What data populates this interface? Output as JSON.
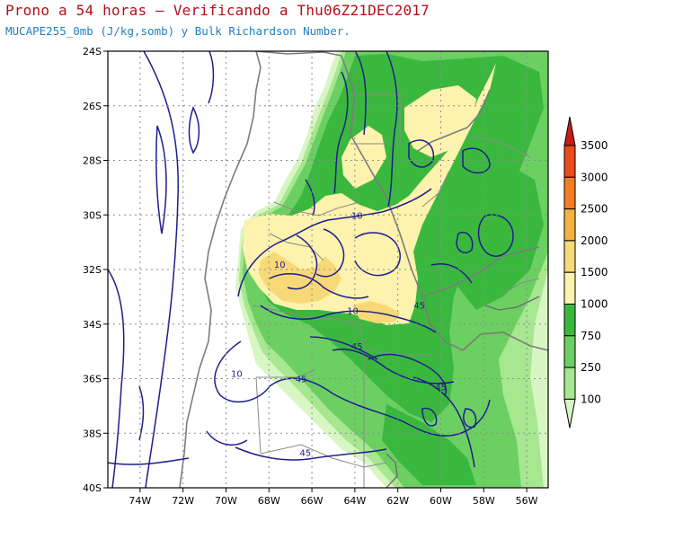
{
  "header": {
    "title": "Prono a 54 horas — Verificando a Thu06Z21DEC2017",
    "subtitle": "MUCAPE255_0mb (J/kg,somb) y Bulk Richardson Number."
  },
  "map": {
    "lat_ticks": [
      "24S",
      "26S",
      "28S",
      "30S",
      "32S",
      "34S",
      "36S",
      "38S",
      "40S"
    ],
    "lon_ticks": [
      "74W",
      "72W",
      "70W",
      "68W",
      "66W",
      "64W",
      "62W",
      "60W",
      "58W",
      "56W"
    ],
    "lon_range": [
      -75.5,
      -55.0
    ],
    "lat_range": [
      -40,
      -24
    ],
    "grid": "dotted",
    "contour_color": "#1e1e8c",
    "contour_labels": [
      {
        "text": "10",
        "lon": -63.9,
        "lat": -30.0
      },
      {
        "text": "10",
        "lon": -67.5,
        "lat": -31.8
      },
      {
        "text": "10",
        "lon": -64.1,
        "lat": -33.5
      },
      {
        "text": "45",
        "lon": -63.9,
        "lat": -34.8
      },
      {
        "text": "45",
        "lon": -61.0,
        "lat": -33.3
      },
      {
        "text": "45",
        "lon": -66.5,
        "lat": -36.0
      },
      {
        "text": "10",
        "lon": -69.5,
        "lat": -35.8
      },
      {
        "text": "45",
        "lon": -60.0,
        "lat": -36.3
      },
      {
        "text": "45",
        "lon": -66.3,
        "lat": -38.7
      }
    ]
  },
  "legend": {
    "levels": [
      "3500",
      "3000",
      "2500",
      "2000",
      "1500",
      "1000",
      "750",
      "250",
      "100"
    ],
    "colors": [
      "#c81e14",
      "#ec4a1a",
      "#f57d24",
      "#f6b13e",
      "#f8d978",
      "#fdf2ae",
      "#3ab83e",
      "#6ccf62",
      "#a6e78f",
      "#d7f6c4"
    ]
  }
}
